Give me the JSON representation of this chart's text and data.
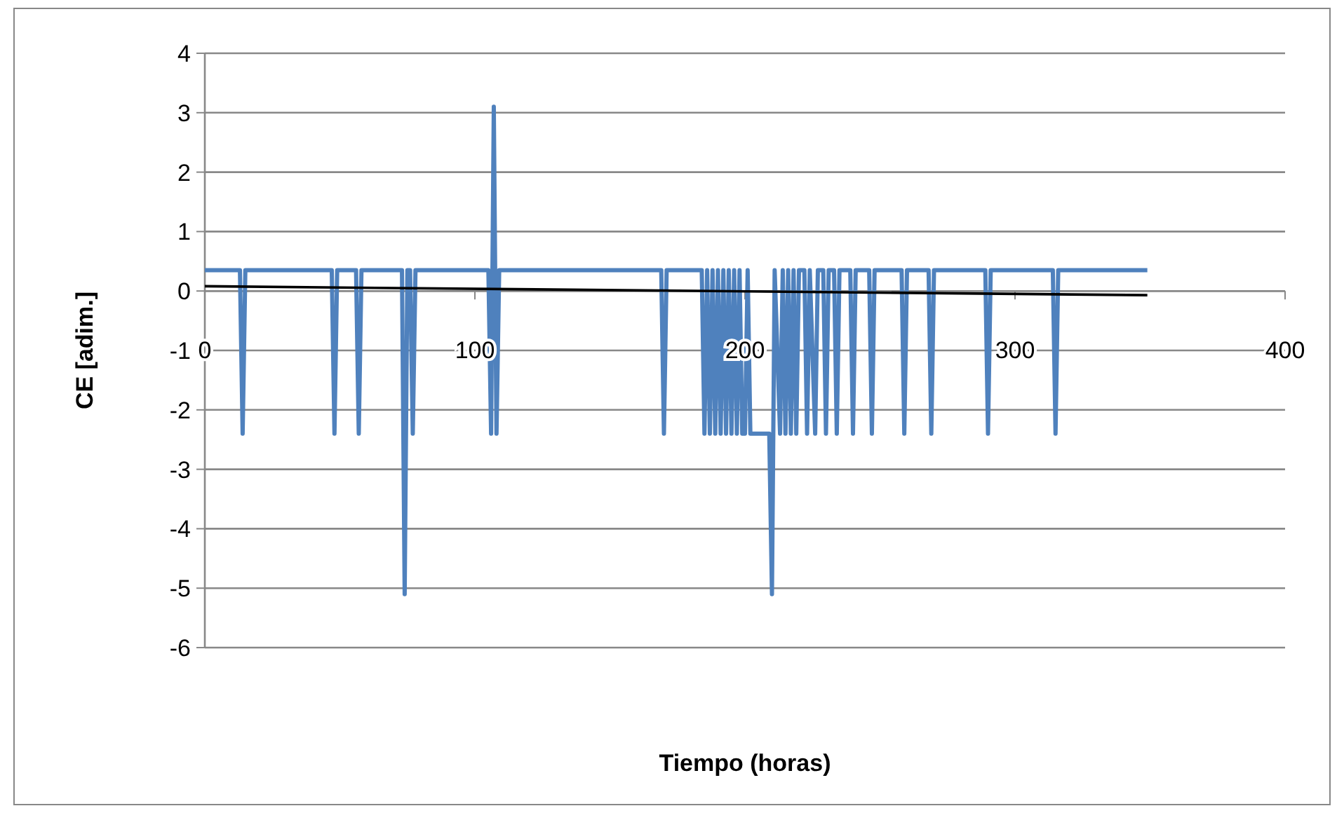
{
  "chart_data": {
    "type": "line",
    "xlabel": "Tiempo (horas)",
    "ylabel": "CE [adim.]",
    "xlim": [
      0,
      400
    ],
    "xticks": [
      0,
      100,
      200,
      300,
      400
    ],
    "ylim": [
      -6,
      4
    ],
    "yticks": [
      -6,
      -5,
      -4,
      -3,
      -2,
      -1,
      0,
      1,
      2,
      3,
      4
    ],
    "grid": "y",
    "marker": "none",
    "line_style": "solid",
    "series": [
      {
        "color": "#4f81bd",
        "x": [
          0,
          13,
          14,
          15,
          47,
          48,
          49,
          56,
          57,
          58,
          73,
          74,
          75,
          76,
          77,
          78,
          105,
          106,
          107,
          108,
          109,
          169,
          170,
          171,
          184,
          185,
          186,
          187,
          188,
          189,
          190,
          191,
          192,
          193,
          194,
          195,
          196,
          197,
          198,
          199,
          200,
          201,
          202,
          209,
          210,
          211,
          213,
          214,
          215,
          216,
          217,
          218,
          219,
          220,
          222,
          223,
          224,
          226,
          227,
          229,
          230,
          231,
          233,
          234,
          235,
          239,
          240,
          241,
          246,
          247,
          248,
          258,
          259,
          260,
          268,
          269,
          270,
          289,
          290,
          291,
          314,
          315,
          316,
          349
        ],
        "values": [
          0.35,
          0.35,
          -2.4,
          0.35,
          0.35,
          -2.4,
          0.35,
          0.35,
          -2.4,
          0.35,
          0.35,
          -5.1,
          0.35,
          0.35,
          -2.4,
          0.35,
          0.35,
          -2.4,
          3.1,
          -2.4,
          0.35,
          0.35,
          -2.4,
          0.35,
          0.35,
          -2.4,
          0.35,
          -2.4,
          0.35,
          -2.4,
          0.35,
          -2.4,
          0.35,
          -2.4,
          0.35,
          -2.4,
          0.35,
          -2.4,
          0.35,
          -2.4,
          -2.4,
          0.35,
          -2.4,
          -2.4,
          -5.1,
          0.35,
          -2.4,
          0.35,
          -2.4,
          0.35,
          -2.4,
          0.35,
          -2.4,
          0.35,
          0.35,
          -2.4,
          0.35,
          -2.4,
          0.35,
          0.35,
          -2.4,
          0.35,
          0.35,
          -2.4,
          0.35,
          0.35,
          -2.4,
          0.35,
          0.35,
          -2.4,
          0.35,
          0.35,
          -2.4,
          0.35,
          0.35,
          -2.4,
          0.35,
          0.35,
          -2.4,
          0.35,
          0.35,
          -2.4,
          0.35,
          0.35
        ]
      },
      {
        "type": "line",
        "color": "#000000",
        "x": [
          0,
          349
        ],
        "values": [
          0.08,
          -0.07
        ]
      }
    ]
  }
}
